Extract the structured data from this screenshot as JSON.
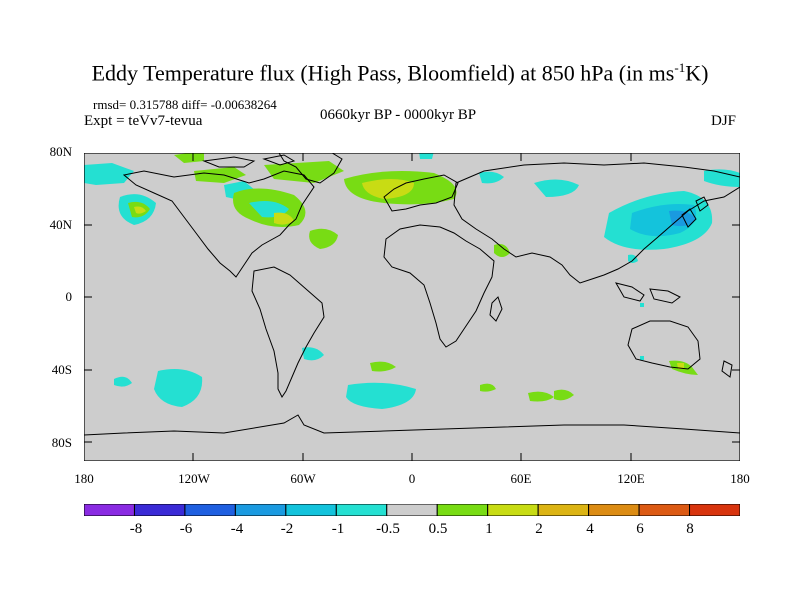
{
  "title": {
    "main": "Eddy Temperature flux (High Pass, Bloomfield) at 850 hPa (in ms",
    "exp": "-1",
    "tail": "K)"
  },
  "stats": "rmsd= 0.315788 diff= -0.00638264",
  "experiment": "Expt = teVv7-tevua",
  "period": "0660kyr BP - 0000kyr BP",
  "season": "DJF",
  "lat_labels": [
    "80N",
    "40N",
    "0",
    "40S",
    "80S"
  ],
  "lon_labels": [
    "180",
    "120W",
    "60W",
    "0",
    "60E",
    "120E",
    "180"
  ],
  "colorbar": {
    "labels": [
      "-8",
      "-6",
      "-4",
      "-2",
      "-1",
      "-0.5",
      "0.5",
      "1",
      "2",
      "4",
      "6",
      "8"
    ],
    "colors": [
      "#8a2be2",
      "#3a2ad6",
      "#1f5fe0",
      "#1a9ae0",
      "#14c3dc",
      "#24e0d2",
      "#cdcdcd",
      "#78dc14",
      "#c8dc14",
      "#dcb414",
      "#dc8c14",
      "#dc5a14",
      "#d8340e"
    ]
  },
  "colors": {
    "land_ocean": "#cdcdcd",
    "coast": "#000000"
  }
}
